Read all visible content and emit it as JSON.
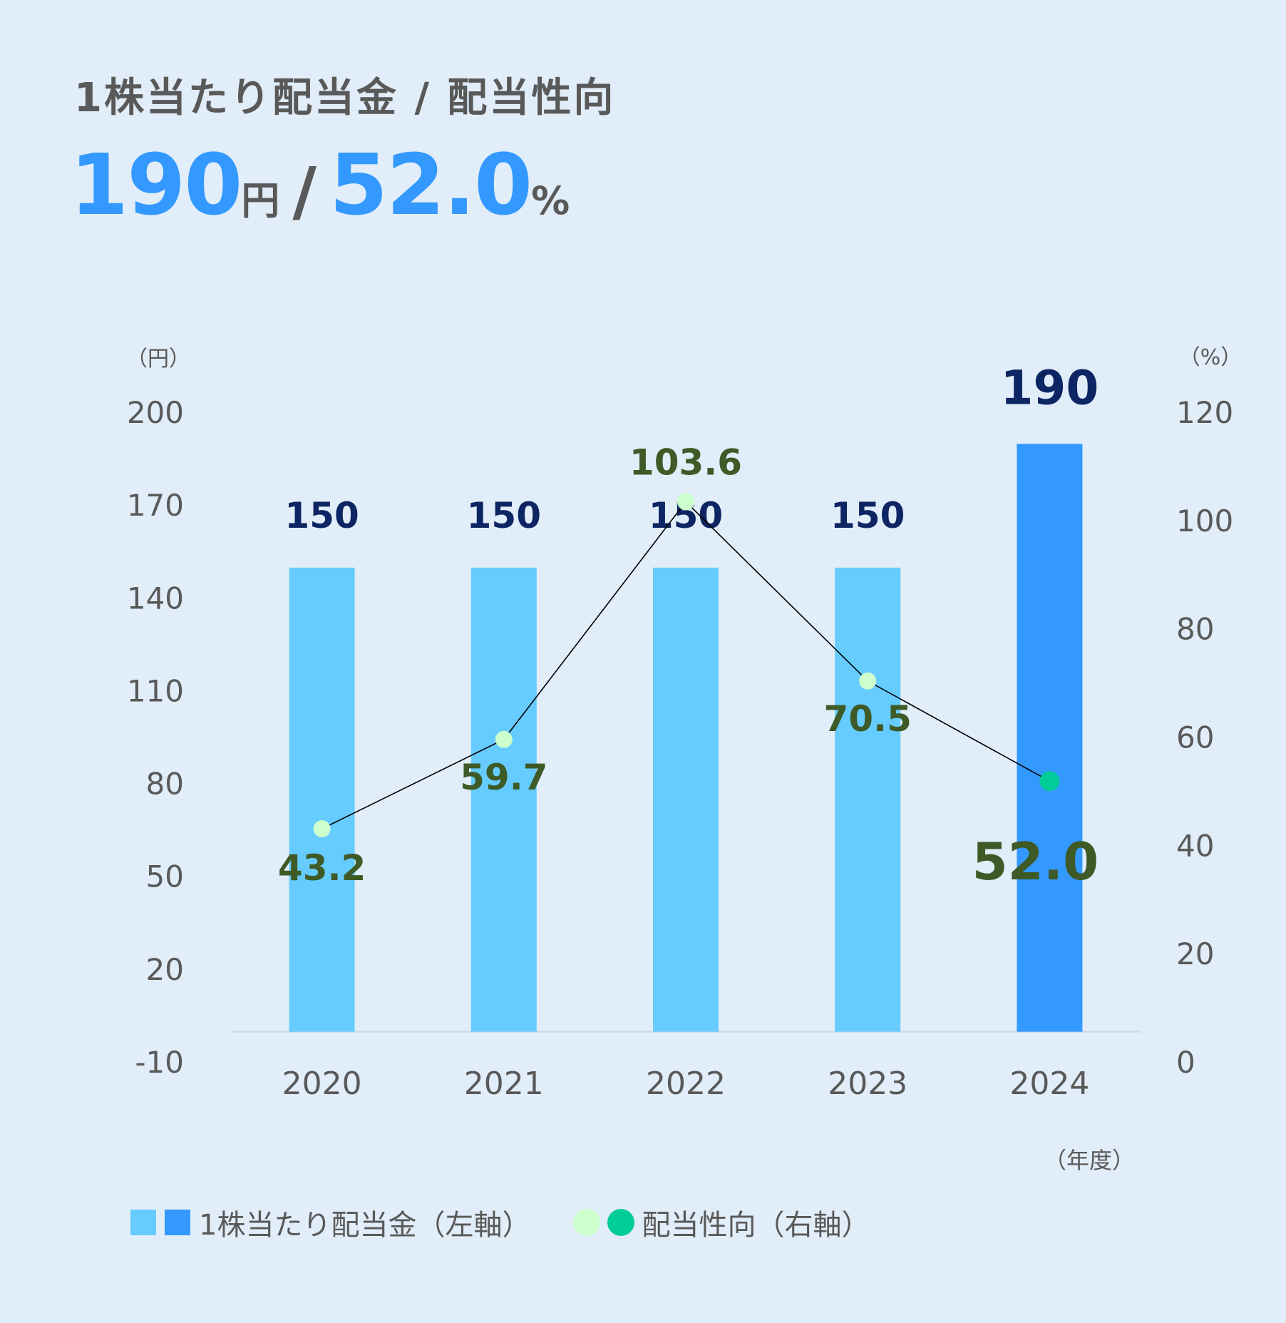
{
  "title": "1株当たり配当金 / 配当性向",
  "headline": {
    "dividend_value": "190",
    "dividend_unit": "円",
    "separator": "/",
    "payout_value": "52.0",
    "payout_unit": "%"
  },
  "colors": {
    "background": "#e1edf8",
    "bar": "#66ccff",
    "bar_highlight": "#3399ff",
    "bar_label": "#0d2563",
    "point": "#ccffcc",
    "point_highlight": "#00cc99",
    "point_label": "#3d5a27",
    "line": "#000000",
    "axis_text": "#595959"
  },
  "legend": {
    "dividend_label": "1株当たり配当金（左軸）",
    "payout_label": "配当性向（右軸）"
  },
  "chart_data": {
    "type": "bar",
    "categories": [
      "2020",
      "2021",
      "2022",
      "2023",
      "2024"
    ],
    "xlabel": "（年度）",
    "y_left": {
      "unit_label": "（円）",
      "ticks": [
        "200",
        "170",
        "140",
        "110",
        "80",
        "50",
        "20",
        "-10"
      ],
      "min": -10,
      "max": 200
    },
    "y_right": {
      "unit_label": "（%）",
      "ticks": [
        "120",
        "100",
        "80",
        "60",
        "40",
        "20",
        "0"
      ],
      "min": 0,
      "max": 120
    },
    "series": [
      {
        "name": "1株当たり配当金（左軸）",
        "type": "bar",
        "axis": "left",
        "values": [
          150,
          150,
          150,
          150,
          190
        ],
        "labels": [
          "150",
          "150",
          "150",
          "150",
          "190"
        ]
      },
      {
        "name": "配当性向（右軸）",
        "type": "line",
        "axis": "right",
        "values": [
          43.2,
          59.7,
          103.6,
          70.5,
          52.0
        ],
        "labels": [
          "43.2",
          "59.7",
          "103.6",
          "70.5",
          "52.0"
        ]
      }
    ],
    "legend_position": "bottom-left",
    "grid": false
  }
}
